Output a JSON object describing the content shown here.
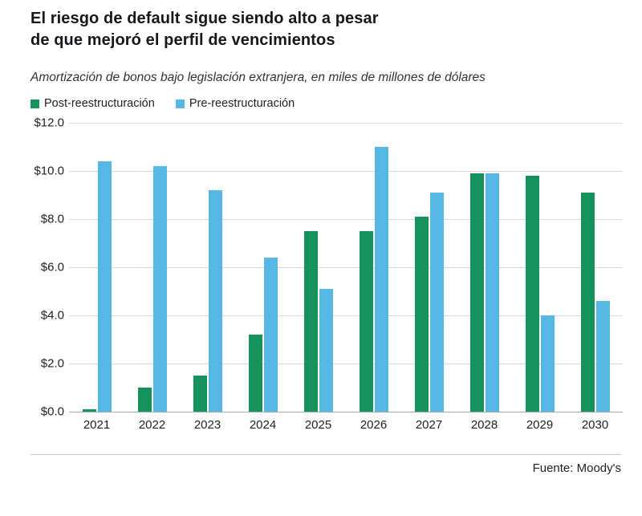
{
  "header": {
    "title_lines": [
      "El riesgo de default sigue siendo alto a pesar",
      "de que mejoró el perfil de vencimientos"
    ],
    "subtitle": "Amortización de bonos bajo legislación extranjera, en miles de millones de dólares"
  },
  "chart_data": {
    "type": "bar",
    "title": "El riesgo de default sigue siendo alto a pesar de que mejoró el perfil de vencimientos",
    "subtitle": "Amortización de bonos bajo legislación extranjera, en miles de millones de dólares",
    "categories": [
      "2021",
      "2022",
      "2023",
      "2024",
      "2025",
      "2026",
      "2027",
      "2028",
      "2029",
      "2030"
    ],
    "series": [
      {
        "name": "Post-reestructuración",
        "color": "#16925c",
        "values": [
          0.1,
          1.0,
          1.5,
          3.2,
          7.5,
          7.5,
          8.1,
          9.9,
          9.8,
          9.1
        ]
      },
      {
        "name": "Pre-reestructuración",
        "color": "#56b7e5",
        "values": [
          10.4,
          10.2,
          9.2,
          6.4,
          5.1,
          11.0,
          9.1,
          9.9,
          4.0,
          4.6
        ]
      }
    ],
    "ylim": [
      0,
      12
    ],
    "yticks": [
      0,
      2,
      4,
      6,
      8,
      10,
      12
    ],
    "ytick_labels": [
      "$0.0",
      "$2.0",
      "$4.0",
      "$6.0",
      "$8.0",
      "$10.0",
      "$12.0"
    ],
    "grid": true,
    "legend_position": "top",
    "xlabel": "",
    "ylabel": "",
    "source": "Fuente: Moody's"
  }
}
